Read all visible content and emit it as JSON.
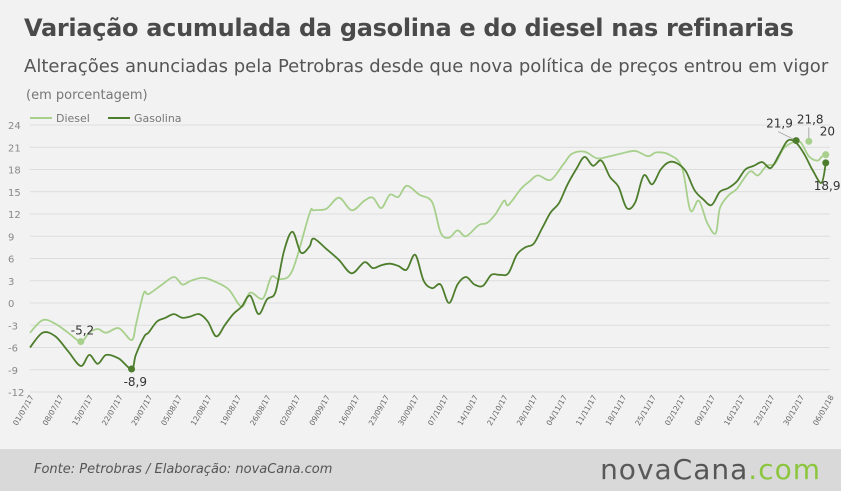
{
  "header": {
    "title": "Variação acumulada da gasolina e do diesel nas refinarias",
    "subtitle": "Alterações anunciadas pela Petrobras desde que nova política de preços entrou em vigor",
    "unit": "(em porcentagem)"
  },
  "footer": {
    "source": "Fonte:  Petrobras  / Elaboração:  novaCana.com",
    "brand_part1": "nova",
    "brand_part2": "Cana",
    "brand_part3": ".com"
  },
  "colors": {
    "diesel": "#a8d08d",
    "gasolina": "#4e7e2d",
    "grid": "#dddddd",
    "axis_text": "#888888"
  },
  "chart_data": {
    "type": "line",
    "title": "Variação acumulada da gasolina e do diesel nas refinarias",
    "xlabel": "",
    "ylabel": "",
    "ylim": [
      -12,
      24
    ],
    "yticks": [
      -12,
      -9,
      -6,
      -3,
      0,
      3,
      6,
      9,
      12,
      15,
      18,
      21,
      24
    ],
    "xlim": [
      0,
      189
    ],
    "legend_position": "top-left",
    "grid": true,
    "x_tick_labels": [
      "01/07/17",
      "08/07/17",
      "15/07/17",
      "22/07/17",
      "29/07/17",
      "05/08/17",
      "12/08/17",
      "19/08/17",
      "26/08/17",
      "02/09/17",
      "09/09/17",
      "16/09/17",
      "23/09/17",
      "30/09/17",
      "07/10/17",
      "14/10/17",
      "21/10/17",
      "28/10/17",
      "04/11/17",
      "11/11/17",
      "18/11/17",
      "25/11/17",
      "02/12/17",
      "09/12/17",
      "16/12/17",
      "23/12/17",
      "30/12/17",
      "06/01/18"
    ],
    "series": [
      {
        "name": "Diesel",
        "x": [
          0,
          3,
          6,
          9,
          12,
          14,
          16,
          18,
          21,
          24,
          25,
          26,
          27,
          28,
          31,
          34,
          36,
          38,
          41,
          44,
          47,
          50,
          52,
          55,
          57,
          59,
          62,
          66,
          67,
          70,
          73,
          76,
          79,
          81,
          83,
          85,
          87,
          89,
          92,
          95,
          97,
          99,
          101,
          103,
          106,
          108,
          110,
          112,
          113,
          116,
          118,
          120,
          123,
          126,
          128,
          131,
          134,
          137,
          140,
          143,
          146,
          148,
          151,
          154,
          156,
          158,
          160,
          162,
          163,
          165,
          167,
          170,
          172,
          174,
          176,
          178,
          180,
          182,
          184,
          186,
          187,
          188
        ],
        "y": [
          -4,
          -2.3,
          -2.8,
          -4,
          -5.2,
          -4,
          -3.5,
          -4,
          -3.4,
          -5,
          -3,
          -0.5,
          1.5,
          1.2,
          2.4,
          3.5,
          2.5,
          3,
          3.4,
          2.8,
          1.8,
          -0.5,
          1.4,
          0.6,
          3.5,
          3.2,
          4.4,
          12,
          12.5,
          12.7,
          14.2,
          12.5,
          13.8,
          14.2,
          12.8,
          14.6,
          14.3,
          15.8,
          14.6,
          13.6,
          9.5,
          8.8,
          9.8,
          9,
          10.5,
          10.8,
          12,
          13.8,
          13.2,
          15.4,
          16.4,
          17.2,
          16.6,
          18.7,
          20.1,
          20.4,
          19.5,
          19.8,
          20.2,
          20.5,
          19.8,
          20.3,
          20,
          18.3,
          12.5,
          13.8,
          10.8,
          9.4,
          12.8,
          14.5,
          15.4,
          17.7,
          17.2,
          18.5,
          18.8,
          20.8,
          21.6,
          21.7,
          19.8,
          19.2,
          19.7,
          20
        ]
      },
      {
        "name": "Gasolina",
        "x": [
          0,
          3,
          6,
          9,
          12,
          14,
          16,
          18,
          21,
          24,
          25,
          27,
          28,
          30,
          32,
          34,
          36,
          38,
          40,
          42,
          44,
          46,
          48,
          50,
          52,
          54,
          56,
          58,
          60,
          62,
          64,
          66,
          67,
          70,
          73,
          76,
          79,
          81,
          83,
          85,
          87,
          89,
          91,
          93,
          95,
          97,
          99,
          101,
          103,
          105,
          107,
          109,
          111,
          113,
          115,
          117,
          119,
          121,
          123,
          125,
          127,
          129,
          131,
          133,
          135,
          137,
          139,
          141,
          143,
          145,
          147,
          149,
          151,
          153,
          155,
          157,
          159,
          161,
          163,
          165,
          167,
          169,
          171,
          173,
          175,
          177,
          179,
          181,
          183,
          185,
          187,
          188
        ],
        "y": [
          -6,
          -4,
          -4.5,
          -6.5,
          -8.5,
          -7,
          -8.2,
          -7,
          -7.5,
          -8.9,
          -7,
          -4.5,
          -4,
          -2.5,
          -2,
          -1.5,
          -2,
          -1.8,
          -1.5,
          -2.5,
          -4.5,
          -3,
          -1.5,
          -0.5,
          1,
          -1.5,
          0.5,
          1.5,
          7,
          9.6,
          6.8,
          7.6,
          8.7,
          7.3,
          5.8,
          4,
          5.5,
          4.7,
          5.1,
          5.3,
          5,
          4.5,
          6.5,
          3,
          2,
          2.5,
          0,
          2.5,
          3.5,
          2.5,
          2.3,
          3.8,
          3.8,
          4,
          6.5,
          7.5,
          8,
          10.1,
          12.2,
          13.5,
          16,
          18,
          19.7,
          18.5,
          19.2,
          17,
          15.7,
          12.8,
          13.6,
          17.2,
          16,
          18,
          19,
          18.8,
          17.7,
          15.2,
          14,
          13.2,
          15,
          15.5,
          16.4,
          18,
          18.5,
          19,
          18.2,
          20,
          21.9,
          21.6,
          20,
          17.8,
          16.2,
          18.9
        ]
      }
    ],
    "annotations": [
      {
        "series": "Diesel",
        "x": 12,
        "y": -5.2,
        "label": "-5,2"
      },
      {
        "series": "Gasolina",
        "x": 24,
        "y": -8.9,
        "label": "-8,9"
      },
      {
        "series": "Gasolina",
        "x": 181,
        "y": 21.9,
        "label": "21,9"
      },
      {
        "series": "Diesel",
        "x": 184,
        "y": 21.8,
        "label": "21,8"
      },
      {
        "series": "Diesel",
        "x": 188,
        "y": 20,
        "label": "20"
      },
      {
        "series": "Gasolina",
        "x": 188,
        "y": 18.9,
        "label": "18,9"
      }
    ]
  }
}
